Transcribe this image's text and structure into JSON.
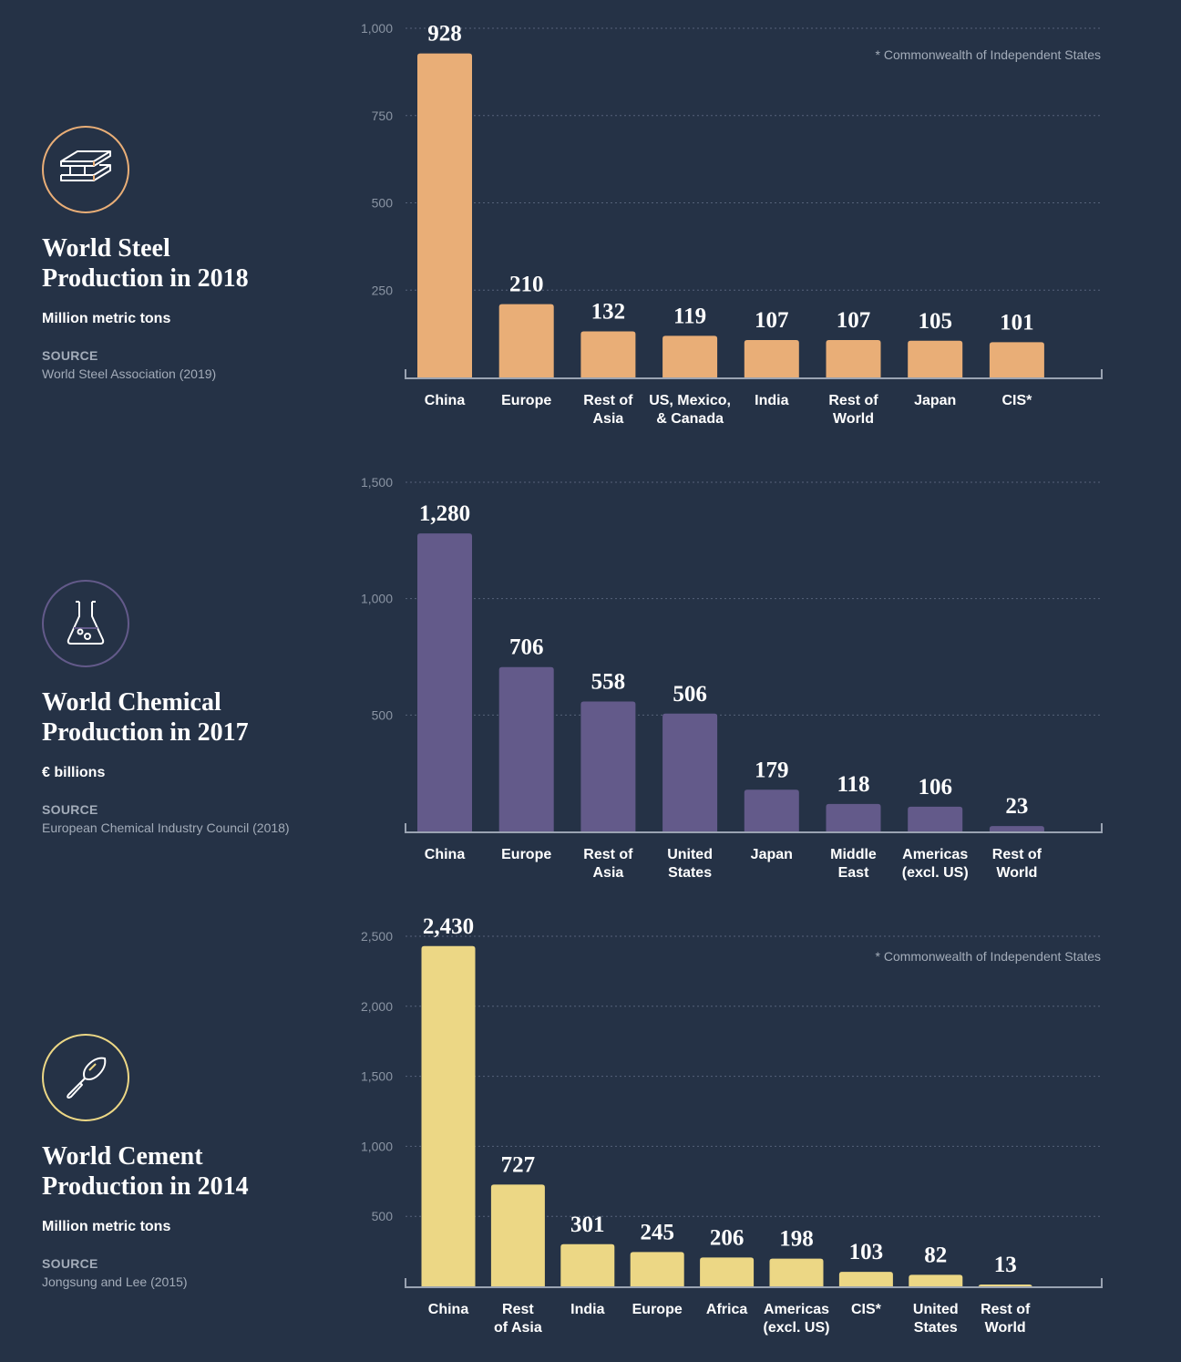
{
  "footnote": "* Commonwealth of Independent States",
  "panels": [
    {
      "icon": "steel-beam-icon",
      "color": "#e9ae77",
      "title_line1": "World Steel",
      "title_line2": "Production in 2018",
      "unit": "Million metric tons",
      "source_label": "SOURCE",
      "source": "World Steel Association (2019)",
      "has_note": true
    },
    {
      "icon": "flask-icon",
      "color": "#635a8a",
      "title_line1": "World Chemical",
      "title_line2": "Production in 2017",
      "unit": "€ billions",
      "source_label": "SOURCE",
      "source": "European Chemical Industry Council (2018)",
      "has_note": false
    },
    {
      "icon": "trowel-icon",
      "color": "#ecd785",
      "title_line1": "World Cement",
      "title_line2": "Production in 2014",
      "unit": "Million metric tons",
      "source_label": "SOURCE",
      "source": "Jongsung and Lee (2015)",
      "has_note": true
    }
  ],
  "chart_data": [
    {
      "type": "bar",
      "title": "World Steel Production in 2018",
      "ylabel": "Million metric tons",
      "categories": [
        [
          "China"
        ],
        [
          "Europe"
        ],
        [
          "Rest of",
          "Asia"
        ],
        [
          "US, Mexico,",
          "& Canada"
        ],
        [
          "India"
        ],
        [
          "Rest of",
          "World"
        ],
        [
          "Japan"
        ],
        [
          "CIS*"
        ]
      ],
      "values": [
        928,
        210,
        132,
        119,
        107,
        107,
        105,
        101
      ],
      "value_labels": [
        "928",
        "210",
        "132",
        "119",
        "107",
        "107",
        "105",
        "101"
      ],
      "yticks": [
        250,
        500,
        750,
        1000
      ],
      "ytick_labels": [
        "250",
        "500",
        "750",
        "1,000"
      ],
      "ylim": [
        0,
        1000
      ],
      "grid": true,
      "color": "#e9ae77"
    },
    {
      "type": "bar",
      "title": "World Chemical Production in 2017",
      "ylabel": "€ billions",
      "categories": [
        [
          "China"
        ],
        [
          "Europe"
        ],
        [
          "Rest of",
          "Asia"
        ],
        [
          "United",
          "States"
        ],
        [
          "Japan"
        ],
        [
          "Middle",
          "East"
        ],
        [
          "Americas",
          "(excl. US)"
        ],
        [
          "Rest of",
          "World"
        ]
      ],
      "values": [
        1280,
        706,
        558,
        506,
        179,
        118,
        106,
        23
      ],
      "value_labels": [
        "1,280",
        "706",
        "558",
        "506",
        "179",
        "118",
        "106",
        "23"
      ],
      "yticks": [
        500,
        1000,
        1500
      ],
      "ytick_labels": [
        "500",
        "1,000",
        "1,500"
      ],
      "ylim": [
        0,
        1500
      ],
      "grid": true,
      "color": "#635a8a"
    },
    {
      "type": "bar",
      "title": "World Cement Production in 2014",
      "ylabel": "Million metric tons",
      "categories": [
        [
          "China"
        ],
        [
          "Rest",
          "of Asia"
        ],
        [
          "India"
        ],
        [
          "Europe"
        ],
        [
          "Africa"
        ],
        [
          "Americas",
          "(excl. US)"
        ],
        [
          "CIS*"
        ],
        [
          "United",
          "States"
        ],
        [
          "Rest of",
          "World"
        ]
      ],
      "values": [
        2430,
        727,
        301,
        245,
        206,
        198,
        103,
        82,
        13
      ],
      "value_labels": [
        "2,430",
        "727",
        "301",
        "245",
        "206",
        "198",
        "103",
        "82",
        "13"
      ],
      "yticks": [
        500,
        1000,
        1500,
        2000,
        2500
      ],
      "ytick_labels": [
        "500",
        "1,000",
        "1,500",
        "2,000",
        "2,500"
      ],
      "ylim": [
        0,
        2500
      ],
      "grid": true,
      "color": "#ecd785"
    }
  ]
}
